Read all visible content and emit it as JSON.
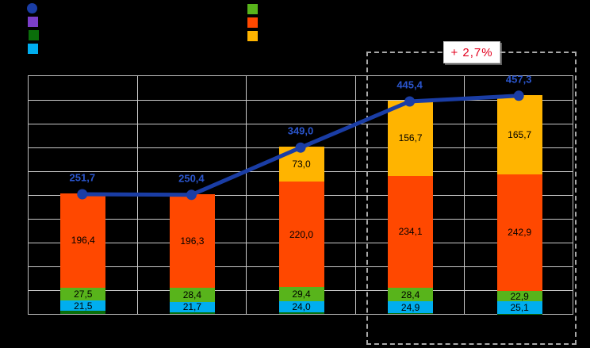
{
  "background_color": "#000000",
  "plot": {
    "background": "transparent-on-black",
    "gridline_color": "#C9C9C9",
    "axis_text_visible": false
  },
  "legend": {
    "labels_visible": false,
    "left_items": [
      {
        "name": "total-line-marker",
        "shape": "circle",
        "color": "#1A3DA5"
      },
      {
        "name": "purple-series-marker",
        "shape": "square",
        "color": "#7B3EC9"
      },
      {
        "name": "darkgreen-series-marker",
        "shape": "square",
        "color": "#0A6E0A"
      },
      {
        "name": "cyan-series-marker",
        "shape": "square",
        "color": "#00AEEF"
      }
    ],
    "right_items": [
      {
        "name": "green-series-marker",
        "shape": "square",
        "color": "#58B41B"
      },
      {
        "name": "orangered-series-marker",
        "shape": "square",
        "color": "#FF4800"
      },
      {
        "name": "amber-series-marker",
        "shape": "square",
        "color": "#FFB400"
      }
    ]
  },
  "annotation": {
    "text": "+ 2,7%",
    "text_color": "#E3001E",
    "box_fill": "#FFFFFF"
  },
  "chart_data": {
    "type": "bar",
    "subtype": "stacked-bars-with-total-line",
    "categories": [
      "",
      "",
      "",
      "",
      ""
    ],
    "category_labels_visible": false,
    "ylim": [
      0,
      500
    ],
    "gridline_step": 50,
    "grid": true,
    "bar_series": [
      {
        "key": "darkgreen_thin",
        "color": "#0A6E0A",
        "values": [
          6.3,
          4.0,
          2.6,
          1.3,
          0.7
        ],
        "labels": [
          "",
          "",
          "",
          "",
          ""
        ],
        "values_inferred_from_totals": true
      },
      {
        "key": "cyan",
        "color": "#00AEEF",
        "values": [
          21.5,
          21.7,
          24.0,
          24.9,
          25.1
        ],
        "labels": [
          "21,5",
          "21,7",
          "24,0",
          "24,9",
          "25,1"
        ]
      },
      {
        "key": "green",
        "color": "#58B41B",
        "values": [
          27.5,
          28.4,
          29.4,
          28.4,
          22.9
        ],
        "labels": [
          "27,5",
          "28,4",
          "29,4",
          "28,4",
          "22,9"
        ]
      },
      {
        "key": "orange_red",
        "color": "#FF4800",
        "values": [
          196.4,
          196.3,
          220.0,
          234.1,
          242.9
        ],
        "labels": [
          "196,4",
          "196,3",
          "220,0",
          "234,1",
          "242,9"
        ]
      },
      {
        "key": "amber",
        "color": "#FFB400",
        "values": [
          0,
          0,
          73.0,
          156.7,
          165.7
        ],
        "labels": [
          "",
          "",
          "73,0",
          "156,7",
          "165,7"
        ]
      }
    ],
    "line_series": {
      "key": "total_line",
      "color": "#1A3DA5",
      "label_color": "#2A55CC",
      "values": [
        251.7,
        250.4,
        349.0,
        445.4,
        457.3
      ],
      "labels": [
        "251,7",
        "250,4",
        "349,0",
        "445,4",
        "457,3"
      ]
    },
    "highlight": {
      "category_indices": [
        3,
        4
      ],
      "style": "dashed-box",
      "annotation": "+ 2,7%"
    }
  }
}
